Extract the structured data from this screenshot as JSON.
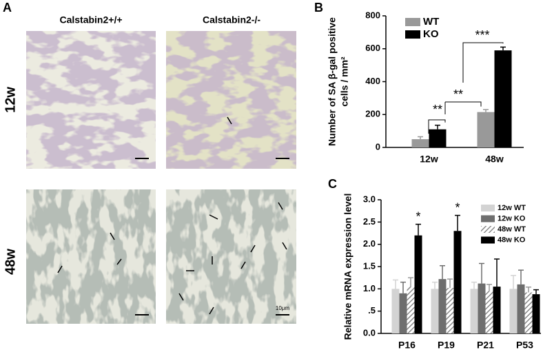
{
  "panel_a": {
    "label": "A",
    "columns": [
      "Calstabin2+/+",
      "Calstabin2-/-"
    ],
    "rows": [
      "12w",
      "48w"
    ],
    "scale_bar": "10μm"
  },
  "chart_data": [
    {
      "type": "bar",
      "panel": "B",
      "ylabel": [
        "Number of SA β-gal positive",
        "cells / mm²"
      ],
      "categories": [
        "12w",
        "48w"
      ],
      "series": [
        {
          "name": "WT",
          "color": "#999999",
          "values": [
            50,
            215
          ],
          "errors": [
            15,
            15
          ]
        },
        {
          "name": "KO",
          "color": "#000000",
          "values": [
            110,
            590
          ],
          "errors": [
            25,
            20
          ]
        }
      ],
      "ylim": [
        0,
        800
      ],
      "yticks": [
        0,
        200,
        400,
        600,
        800
      ],
      "legend": "upper left",
      "annotations": [
        "**",
        "**",
        "***"
      ]
    },
    {
      "type": "bar",
      "panel": "C",
      "ylabel": [
        "Relative mRNA expression level"
      ],
      "categories": [
        "P16",
        "P19",
        "P21",
        "P53"
      ],
      "series": [
        {
          "name": "12w WT",
          "color": "#d3d3d3",
          "values": [
            1.0,
            1.0,
            1.0,
            1.0
          ],
          "errors": [
            0.2,
            0.15,
            0.15,
            0.3
          ]
        },
        {
          "name": "12w KO",
          "color": "#6e6e6e",
          "values": [
            0.9,
            1.22,
            1.12,
            1.1
          ],
          "errors": [
            0.25,
            0.3,
            0.45,
            0.32
          ]
        },
        {
          "name": "48w WT",
          "color": "#999999",
          "hatch": true,
          "values": [
            1.05,
            1.02,
            0.95,
            0.92
          ],
          "errors": [
            0.2,
            0.2,
            0.15,
            0.12
          ]
        },
        {
          "name": "48w KO",
          "color": "#000000",
          "values": [
            2.2,
            2.3,
            1.05,
            0.88
          ],
          "errors": [
            0.25,
            0.35,
            0.62,
            0.1
          ]
        }
      ],
      "ylim": [
        0,
        3
      ],
      "yticks": [
        {
          "value": 0,
          "label": "0.0"
        },
        {
          "value": 0.5,
          "label": ".5"
        },
        {
          "value": 1,
          "label": "1.0"
        },
        {
          "value": 1.5,
          "label": "1.5"
        },
        {
          "value": 2,
          "label": "2.0"
        },
        {
          "value": 2.5,
          "label": "2.5"
        },
        {
          "value": 3,
          "label": "3.0"
        }
      ],
      "legend": "upper right",
      "annotations": [
        "*",
        "*"
      ]
    }
  ]
}
